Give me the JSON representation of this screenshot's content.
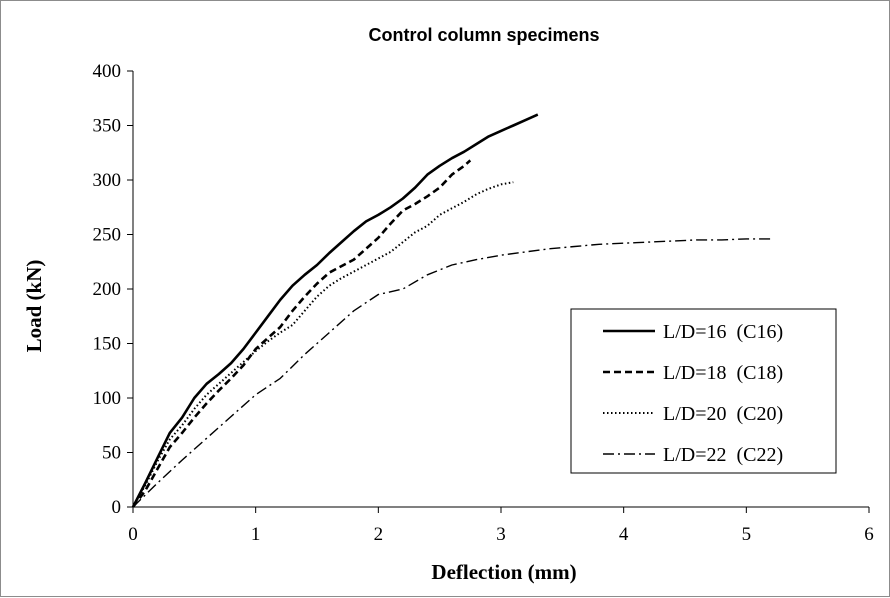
{
  "chart_data": {
    "type": "line",
    "title": "Control column specimens",
    "xlabel": "Deflection  (mm)",
    "ylabel": "Load (kN)",
    "xlim": [
      0,
      6
    ],
    "ylim": [
      0,
      400
    ],
    "xticks": [
      "0",
      "1",
      "2",
      "3",
      "4",
      "5",
      "6"
    ],
    "yticks": [
      "0",
      "50",
      "100",
      "150",
      "200",
      "250",
      "300",
      "350",
      "400"
    ],
    "grid": false,
    "legend_position": "lower-right",
    "series": [
      {
        "name": "L/D=16  (C16)",
        "style": "solid",
        "x": [
          0,
          0.1,
          0.2,
          0.3,
          0.4,
          0.5,
          0.6,
          0.7,
          0.8,
          0.9,
          1.0,
          1.1,
          1.2,
          1.3,
          1.4,
          1.5,
          1.6,
          1.7,
          1.8,
          1.9,
          2.0,
          2.1,
          2.2,
          2.3,
          2.4,
          2.5,
          2.6,
          2.7,
          2.8,
          2.9,
          3.0,
          3.1,
          3.2,
          3.3
        ],
        "y": [
          0,
          22,
          45,
          68,
          82,
          100,
          113,
          122,
          132,
          145,
          160,
          175,
          190,
          203,
          213,
          222,
          233,
          243,
          253,
          262,
          268,
          275,
          283,
          293,
          305,
          313,
          320,
          326,
          333,
          340,
          345,
          350,
          355,
          360
        ]
      },
      {
        "name": "L/D=18  (C18)",
        "style": "dashed",
        "x": [
          0,
          0.1,
          0.2,
          0.3,
          0.4,
          0.5,
          0.6,
          0.7,
          0.8,
          0.9,
          1.0,
          1.1,
          1.2,
          1.3,
          1.4,
          1.5,
          1.6,
          1.7,
          1.8,
          1.9,
          2.0,
          2.1,
          2.2,
          2.3,
          2.4,
          2.5,
          2.6,
          2.7,
          2.75
        ],
        "y": [
          0,
          15,
          35,
          55,
          68,
          82,
          95,
          107,
          118,
          130,
          145,
          155,
          165,
          180,
          193,
          205,
          215,
          221,
          227,
          237,
          247,
          260,
          272,
          278,
          285,
          293,
          305,
          313,
          318
        ]
      },
      {
        "name": "L/D=20  (C20)",
        "style": "dotted",
        "x": [
          0,
          0.1,
          0.2,
          0.3,
          0.4,
          0.5,
          0.6,
          0.7,
          0.8,
          0.9,
          1.0,
          1.1,
          1.2,
          1.3,
          1.4,
          1.5,
          1.6,
          1.7,
          1.8,
          1.9,
          2.0,
          2.1,
          2.2,
          2.3,
          2.4,
          2.5,
          2.6,
          2.7,
          2.8,
          2.9,
          3.0,
          3.1
        ],
        "y": [
          0,
          20,
          42,
          62,
          75,
          90,
          103,
          113,
          123,
          133,
          143,
          152,
          160,
          167,
          180,
          193,
          203,
          210,
          216,
          222,
          228,
          234,
          243,
          252,
          258,
          268,
          274,
          280,
          287,
          292,
          296,
          298
        ]
      },
      {
        "name": "L/D=22  (C22)",
        "style": "dash-dot",
        "x": [
          0,
          0.2,
          0.4,
          0.6,
          0.8,
          1.0,
          1.2,
          1.4,
          1.6,
          1.8,
          2.0,
          2.2,
          2.4,
          2.6,
          2.8,
          3.0,
          3.2,
          3.4,
          3.6,
          3.8,
          4.0,
          4.2,
          4.4,
          4.6,
          4.8,
          5.0,
          5.2
        ],
        "y": [
          0,
          22,
          43,
          63,
          83,
          103,
          118,
          140,
          160,
          180,
          195,
          200,
          213,
          222,
          227,
          231,
          234,
          237,
          239,
          241,
          242,
          243,
          244,
          245,
          245,
          246,
          246
        ]
      }
    ]
  }
}
